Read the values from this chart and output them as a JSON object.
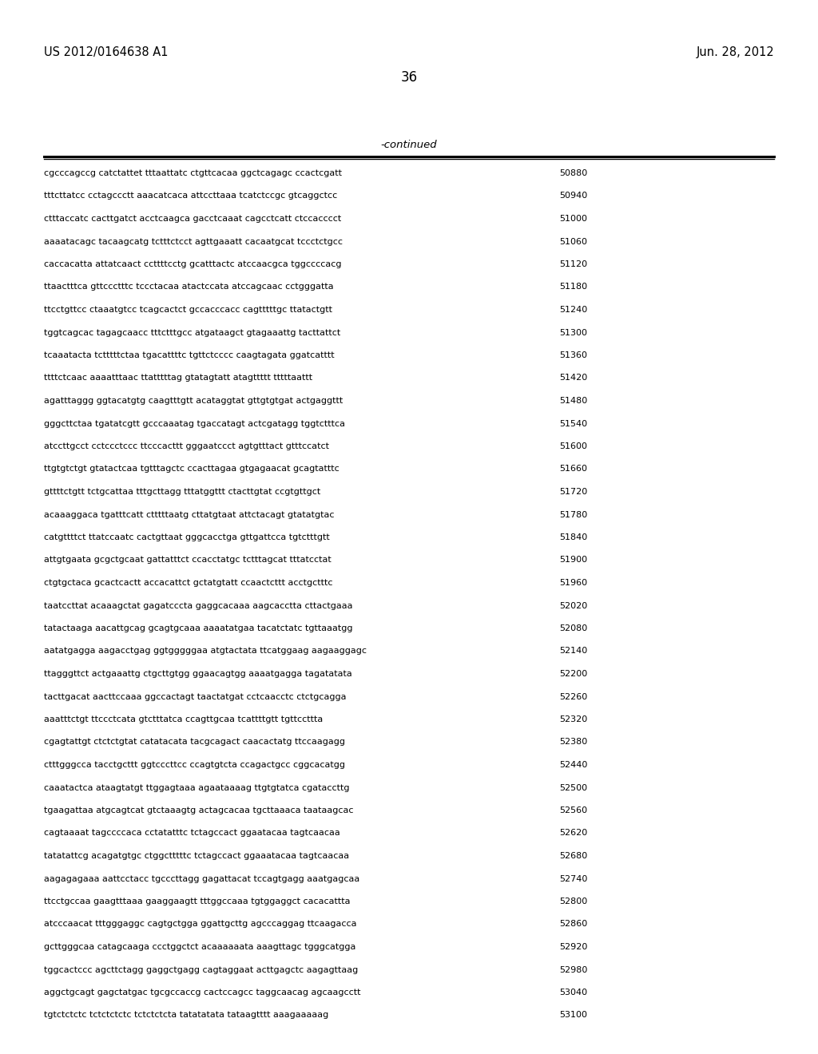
{
  "header_left": "US 2012/0164638 A1",
  "header_right": "Jun. 28, 2012",
  "page_number": "36",
  "continued_label": "-continued",
  "background_color": "#ffffff",
  "text_color": "#000000",
  "font_size_header": 10.5,
  "font_size_page": 12,
  "font_size_continued": 9.5,
  "font_size_sequence": 8.0,
  "sequence_lines": [
    {
      "seq": "cgcccagccg catctattet tttaattatc ctgttcacaa ggctcagagc ccactcgatt",
      "num": "50880"
    },
    {
      "seq": "tttcttatcc cctagccctt aaacatcaca attccttaaa tcatctccgc gtcaggctcc",
      "num": "50940"
    },
    {
      "seq": "ctttaccatc cacttgatct acctcaagca gacctcaaat cagcctcatt ctccacccct",
      "num": "51000"
    },
    {
      "seq": "aaaatacagc tacaagcatg tctttctcct agttgaaatt cacaatgcat tccctctgcc",
      "num": "51060"
    },
    {
      "seq": "caccacatta attatcaact ccttttcctg gcatttactc atccaacgca tggccccacg",
      "num": "51120"
    },
    {
      "seq": "ttaactttca gttccctttc tccctacaa atactccata atccagcaac cctgggatta",
      "num": "51180"
    },
    {
      "seq": "ttcctgttcc ctaaatgtcc tcagcactct gccacccacc cagtttttgc ttatactgtt",
      "num": "51240"
    },
    {
      "seq": "tggtcagcac tagagcaacc tttctttgcc atgataagct gtagaaattg tacttattct",
      "num": "51300"
    },
    {
      "seq": "tcaaatacta tctttttctaa tgacattttc tgttctcccc caagtagata ggatcatttt",
      "num": "51360"
    },
    {
      "seq": "ttttctcaac aaaatttaac ttatttttag gtatagtatt atagttttt tttttaattt",
      "num": "51420"
    },
    {
      "seq": "agatttaggg ggtacatgtg caagtttgtt acataggtat gttgtgtgat actgaggttt",
      "num": "51480"
    },
    {
      "seq": "gggcttctaa tgatatcgtt gcccaaatag tgaccatagt actcgatagg tggtctttca",
      "num": "51540"
    },
    {
      "seq": "atccttgcct cctccctccc ttcccacttt gggaatccct agtgtttact gtttccatct",
      "num": "51600"
    },
    {
      "seq": "ttgtgtctgt gtatactcaa tgtttagctc ccacttagaa gtgagaacat gcagtatttc",
      "num": "51660"
    },
    {
      "seq": "gttttctgtt tctgcattaa tttgcttagg tttatggttt ctacttgtat ccgtgttgct",
      "num": "51720"
    },
    {
      "seq": "acaaaggaca tgatttcatt ctttttaatg cttatgtaat attctacagt gtatatgtac",
      "num": "51780"
    },
    {
      "seq": "catgttttct ttatccaatc cactgttaat gggcacctga gttgattcca tgtctttgtt",
      "num": "51840"
    },
    {
      "seq": "attgtgaata gcgctgcaat gattatttct ccacctatgc tctttagcat tttatcctat",
      "num": "51900"
    },
    {
      "seq": "ctgtgctaca gcactcactt accacattct gctatgtatt ccaactcttt acctgctttc",
      "num": "51960"
    },
    {
      "seq": "taatccttat acaaagctat gagatcccta gaggcacaaa aagcacctta cttactgaaa",
      "num": "52020"
    },
    {
      "seq": "tatactaaga aacattgcag gcagtgcaaa aaaatatgaa tacatctatc tgttaaatgg",
      "num": "52080"
    },
    {
      "seq": "aatatgagga aagacctgag ggtgggggaa atgtactata ttcatggaag aagaaggagc",
      "num": "52140"
    },
    {
      "seq": "ttagggttct actgaaattg ctgcttgtgg ggaacagtgg aaaatgagga tagatatata",
      "num": "52200"
    },
    {
      "seq": "tacttgacat aacttccaaa ggccactagt taactatgat cctcaacctc ctctgcagga",
      "num": "52260"
    },
    {
      "seq": "aaatttctgt ttccctcata gtctttatca ccagttgcaa tcattttgtt tgttccttta",
      "num": "52320"
    },
    {
      "seq": "cgagtattgt ctctctgtat catatacata tacgcagact caacactatg ttccaagagg",
      "num": "52380"
    },
    {
      "seq": "ctttgggcca tacctgcttt ggtcccttcc ccagtgtcta ccagactgcc cggcacatgg",
      "num": "52440"
    },
    {
      "seq": "caaatactca ataagtatgt ttggagtaaa agaataaaag ttgtgtatca cgataccttg",
      "num": "52500"
    },
    {
      "seq": "tgaagattaa atgcagtcat gtctaaagtg actagcacaa tgcttaaaca taataagcac",
      "num": "52560"
    },
    {
      "seq": "cagtaaaat tagccccaca cctatatttc tctagccact ggaatacaa tagtcaacaa",
      "num": "52620"
    },
    {
      "seq": "tatatattcg acagatgtgc ctggctttttc tctagccact ggaaatacaa tagtcaacaa",
      "num": "52680"
    },
    {
      "seq": "aagagagaaa aattcctacc tgcccttagg gagattacat tccagtgagg aaatgagcaa",
      "num": "52740"
    },
    {
      "seq": "ttcctgccaa gaagtttaaa gaaggaagtt tttggccaaa tgtggaggct cacacattta",
      "num": "52800"
    },
    {
      "seq": "atcccaacat tttgggaggc cagtgctgga ggattgcttg agcccaggag ttcaagacca",
      "num": "52860"
    },
    {
      "seq": "gcttgggcaa catagcaaga ccctggctct acaaaaaata aaagttagc tgggcatgga",
      "num": "52920"
    },
    {
      "seq": "tggcactccc agcttctagg gaggctgagg cagtaggaat acttgagctc aagagttaag",
      "num": "52980"
    },
    {
      "seq": "aggctgcagt gagctatgac tgcgccaccg cactccagcc taggcaacag agcaagcctt",
      "num": "53040"
    },
    {
      "seq": "tgtctctctc tctctctctc tctctctcta tatatatata tataagtttt aaagaaaaag",
      "num": "53100"
    }
  ]
}
